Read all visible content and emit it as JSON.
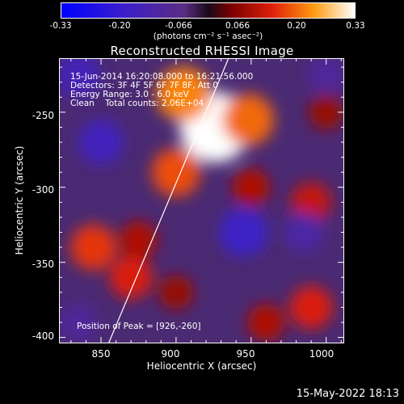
{
  "chart_data": {
    "type": "heatmap",
    "title": "Reconstructed RHESSI Image",
    "xlabel": "Heliocentric X (arcsec)",
    "ylabel": "Heliocentric Y (arcsec)",
    "xlim": [
      822,
      1012
    ],
    "ylim": [
      -404,
      -214
    ],
    "x_ticks": [
      850,
      900,
      950,
      1000
    ],
    "y_ticks": [
      -250,
      -300,
      -350,
      -400
    ],
    "colorbar": {
      "range": [
        -0.33,
        0.33
      ],
      "ticks": [
        "-0.33",
        "-0.20",
        "-0.066",
        "0.066",
        "0.20",
        "0.33"
      ],
      "units": "(photons cm⁻² s⁻¹ asec⁻²)"
    },
    "annotations": {
      "time": "15-Jun-2014 16:20:08.000 to 16:21:56.000",
      "detectors": "Detectors: 3F 4F 5F 6F 7F 8F, Att 0",
      "energy": "Energy Range: 3.0 - 6.0 keV",
      "clean": "Clean    Total counts: 2.06E+04",
      "peak": "Position of Peak = [926,-260]"
    },
    "peak": {
      "x": 926,
      "y": -260
    },
    "limb_line": [
      {
        "x": 855,
        "y": -404
      },
      {
        "x": 935,
        "y": -214
      }
    ],
    "sources": [
      {
        "x": 926,
        "y": -260,
        "intensity": 0.33
      },
      {
        "x": 905,
        "y": -238,
        "intensity": 0.22
      },
      {
        "x": 948,
        "y": -255,
        "intensity": 0.2
      },
      {
        "x": 900,
        "y": -290,
        "intensity": 0.18
      },
      {
        "x": 950,
        "y": -300,
        "intensity": 0.1
      },
      {
        "x": 990,
        "y": -310,
        "intensity": 0.12
      },
      {
        "x": 845,
        "y": -340,
        "intensity": 0.16
      },
      {
        "x": 870,
        "y": -360,
        "intensity": 0.14
      },
      {
        "x": 875,
        "y": -335,
        "intensity": 0.1
      },
      {
        "x": 990,
        "y": -380,
        "intensity": 0.14
      },
      {
        "x": 960,
        "y": -390,
        "intensity": 0.1
      },
      {
        "x": 900,
        "y": -370,
        "intensity": 0.08
      },
      {
        "x": 1000,
        "y": -250,
        "intensity": 0.08
      },
      {
        "x": 850,
        "y": -270,
        "intensity": -0.16
      },
      {
        "x": 835,
        "y": -225,
        "intensity": -0.15
      },
      {
        "x": 945,
        "y": -330,
        "intensity": -0.18
      },
      {
        "x": 985,
        "y": -330,
        "intensity": -0.12
      },
      {
        "x": 835,
        "y": -390,
        "intensity": -0.1
      },
      {
        "x": 1000,
        "y": -225,
        "intensity": -0.1
      }
    ]
  },
  "timestamp": "15-May-2022 18:13"
}
